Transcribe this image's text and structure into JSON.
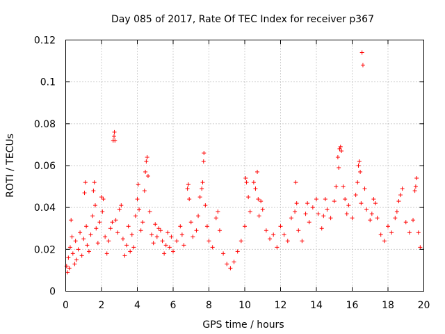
{
  "chart_data": {
    "type": "scatter",
    "title": "Day 085 of 2017, Rate Of TEC Index for receiver p367",
    "xlabel": "GPS time / hours",
    "ylabel": "ROTI / TECUs",
    "xlim": [
      0,
      20
    ],
    "ylim": [
      0,
      0.12
    ],
    "xticks": [
      0,
      2,
      4,
      6,
      8,
      10,
      12,
      14,
      16,
      18,
      20
    ],
    "xtick_labels": [
      "0",
      "2",
      "4",
      "6",
      "8",
      "10",
      "12",
      "14",
      "16",
      "18",
      "20"
    ],
    "yticks": [
      0,
      0.02,
      0.04,
      0.06,
      0.08,
      0.1,
      0.12
    ],
    "ytick_labels": [
      "0",
      "0.02",
      "0.04",
      "0.06",
      "0.08",
      "0.1",
      "0.12"
    ],
    "grid": true,
    "marker": "+",
    "color": "#ff0000",
    "series": [
      {
        "name": "ROTI",
        "points": [
          [
            0.05,
            0.012
          ],
          [
            0.1,
            0.009
          ],
          [
            0.15,
            0.016
          ],
          [
            0.2,
            0.011
          ],
          [
            0.25,
            0.021
          ],
          [
            0.3,
            0.034
          ],
          [
            0.35,
            0.026
          ],
          [
            0.4,
            0.018
          ],
          [
            0.5,
            0.013
          ],
          [
            0.55,
            0.024
          ],
          [
            0.6,
            0.015
          ],
          [
            0.7,
            0.02
          ],
          [
            0.8,
            0.028
          ],
          [
            0.9,
            0.017
          ],
          [
            1.0,
            0.025
          ],
          [
            1.05,
            0.047
          ],
          [
            1.1,
            0.052
          ],
          [
            1.15,
            0.031
          ],
          [
            1.2,
            0.022
          ],
          [
            1.3,
            0.019
          ],
          [
            1.4,
            0.027
          ],
          [
            1.5,
            0.036
          ],
          [
            1.55,
            0.048
          ],
          [
            1.6,
            0.052
          ],
          [
            1.65,
            0.041
          ],
          [
            1.7,
            0.03
          ],
          [
            1.8,
            0.023
          ],
          [
            1.9,
            0.033
          ],
          [
            2.0,
            0.045
          ],
          [
            2.05,
            0.038
          ],
          [
            2.1,
            0.044
          ],
          [
            2.2,
            0.026
          ],
          [
            2.3,
            0.018
          ],
          [
            2.4,
            0.024
          ],
          [
            2.5,
            0.03
          ],
          [
            2.6,
            0.033
          ],
          [
            2.65,
            0.072
          ],
          [
            2.7,
            0.074
          ],
          [
            2.72,
            0.076
          ],
          [
            2.75,
            0.072
          ],
          [
            2.8,
            0.034
          ],
          [
            2.9,
            0.028
          ],
          [
            3.0,
            0.039
          ],
          [
            3.1,
            0.041
          ],
          [
            3.2,
            0.025
          ],
          [
            3.3,
            0.017
          ],
          [
            3.4,
            0.022
          ],
          [
            3.5,
            0.031
          ],
          [
            3.6,
            0.019
          ],
          [
            3.7,
            0.027
          ],
          [
            3.8,
            0.021
          ],
          [
            3.9,
            0.036
          ],
          [
            4.0,
            0.044
          ],
          [
            4.05,
            0.051
          ],
          [
            4.1,
            0.039
          ],
          [
            4.2,
            0.029
          ],
          [
            4.3,
            0.033
          ],
          [
            4.4,
            0.048
          ],
          [
            4.45,
            0.057
          ],
          [
            4.5,
            0.062
          ],
          [
            4.55,
            0.064
          ],
          [
            4.6,
            0.055
          ],
          [
            4.7,
            0.038
          ],
          [
            4.8,
            0.027
          ],
          [
            4.9,
            0.023
          ],
          [
            5.0,
            0.032
          ],
          [
            5.1,
            0.026
          ],
          [
            5.2,
            0.03
          ],
          [
            5.3,
            0.029
          ],
          [
            5.4,
            0.024
          ],
          [
            5.5,
            0.018
          ],
          [
            5.6,
            0.022
          ],
          [
            5.7,
            0.028
          ],
          [
            5.8,
            0.021
          ],
          [
            5.9,
            0.026
          ],
          [
            6.0,
            0.019
          ],
          [
            6.2,
            0.024
          ],
          [
            6.4,
            0.031
          ],
          [
            6.5,
            0.027
          ],
          [
            6.6,
            0.022
          ],
          [
            6.8,
            0.049
          ],
          [
            6.85,
            0.051
          ],
          [
            6.9,
            0.044
          ],
          [
            7.0,
            0.033
          ],
          [
            7.1,
            0.026
          ],
          [
            7.3,
            0.029
          ],
          [
            7.4,
            0.036
          ],
          [
            7.5,
            0.045
          ],
          [
            7.6,
            0.049
          ],
          [
            7.65,
            0.052
          ],
          [
            7.7,
            0.062
          ],
          [
            7.72,
            0.066
          ],
          [
            7.8,
            0.041
          ],
          [
            7.9,
            0.031
          ],
          [
            8.0,
            0.024
          ],
          [
            8.2,
            0.021
          ],
          [
            8.4,
            0.035
          ],
          [
            8.5,
            0.038
          ],
          [
            8.6,
            0.029
          ],
          [
            8.8,
            0.018
          ],
          [
            9.0,
            0.013
          ],
          [
            9.2,
            0.011
          ],
          [
            9.4,
            0.014
          ],
          [
            9.6,
            0.019
          ],
          [
            9.8,
            0.024
          ],
          [
            10.0,
            0.031
          ],
          [
            10.05,
            0.054
          ],
          [
            10.1,
            0.052
          ],
          [
            10.2,
            0.045
          ],
          [
            10.3,
            0.038
          ],
          [
            10.5,
            0.052
          ],
          [
            10.6,
            0.049
          ],
          [
            10.7,
            0.057
          ],
          [
            10.75,
            0.044
          ],
          [
            10.8,
            0.036
          ],
          [
            10.9,
            0.043
          ],
          [
            11.0,
            0.039
          ],
          [
            11.2,
            0.029
          ],
          [
            11.4,
            0.025
          ],
          [
            11.6,
            0.027
          ],
          [
            11.8,
            0.021
          ],
          [
            12.0,
            0.031
          ],
          [
            12.2,
            0.027
          ],
          [
            12.4,
            0.024
          ],
          [
            12.6,
            0.035
          ],
          [
            12.8,
            0.038
          ],
          [
            12.85,
            0.052
          ],
          [
            12.9,
            0.042
          ],
          [
            13.0,
            0.029
          ],
          [
            13.2,
            0.024
          ],
          [
            13.4,
            0.037
          ],
          [
            13.5,
            0.042
          ],
          [
            13.6,
            0.033
          ],
          [
            13.8,
            0.04
          ],
          [
            14.0,
            0.044
          ],
          [
            14.1,
            0.037
          ],
          [
            14.3,
            0.03
          ],
          [
            14.4,
            0.036
          ],
          [
            14.5,
            0.044
          ],
          [
            14.6,
            0.039
          ],
          [
            14.8,
            0.035
          ],
          [
            15.0,
            0.043
          ],
          [
            15.1,
            0.05
          ],
          [
            15.2,
            0.064
          ],
          [
            15.25,
            0.059
          ],
          [
            15.3,
            0.068
          ],
          [
            15.35,
            0.069
          ],
          [
            15.4,
            0.067
          ],
          [
            15.5,
            0.05
          ],
          [
            15.6,
            0.044
          ],
          [
            15.7,
            0.037
          ],
          [
            15.8,
            0.041
          ],
          [
            16.0,
            0.035
          ],
          [
            16.2,
            0.046
          ],
          [
            16.3,
            0.052
          ],
          [
            16.35,
            0.06
          ],
          [
            16.4,
            0.062
          ],
          [
            16.45,
            0.057
          ],
          [
            16.5,
            0.042
          ],
          [
            16.55,
            0.114
          ],
          [
            16.6,
            0.108
          ],
          [
            16.7,
            0.049
          ],
          [
            16.8,
            0.039
          ],
          [
            17.0,
            0.034
          ],
          [
            17.1,
            0.037
          ],
          [
            17.2,
            0.044
          ],
          [
            17.3,
            0.042
          ],
          [
            17.4,
            0.035
          ],
          [
            17.6,
            0.027
          ],
          [
            17.8,
            0.024
          ],
          [
            18.0,
            0.031
          ],
          [
            18.2,
            0.028
          ],
          [
            18.4,
            0.035
          ],
          [
            18.5,
            0.038
          ],
          [
            18.6,
            0.043
          ],
          [
            18.7,
            0.046
          ],
          [
            18.8,
            0.049
          ],
          [
            19.0,
            0.033
          ],
          [
            19.2,
            0.028
          ],
          [
            19.4,
            0.034
          ],
          [
            19.5,
            0.048
          ],
          [
            19.55,
            0.05
          ],
          [
            19.6,
            0.054
          ],
          [
            19.7,
            0.028
          ],
          [
            19.8,
            0.021
          ]
        ]
      }
    ]
  }
}
